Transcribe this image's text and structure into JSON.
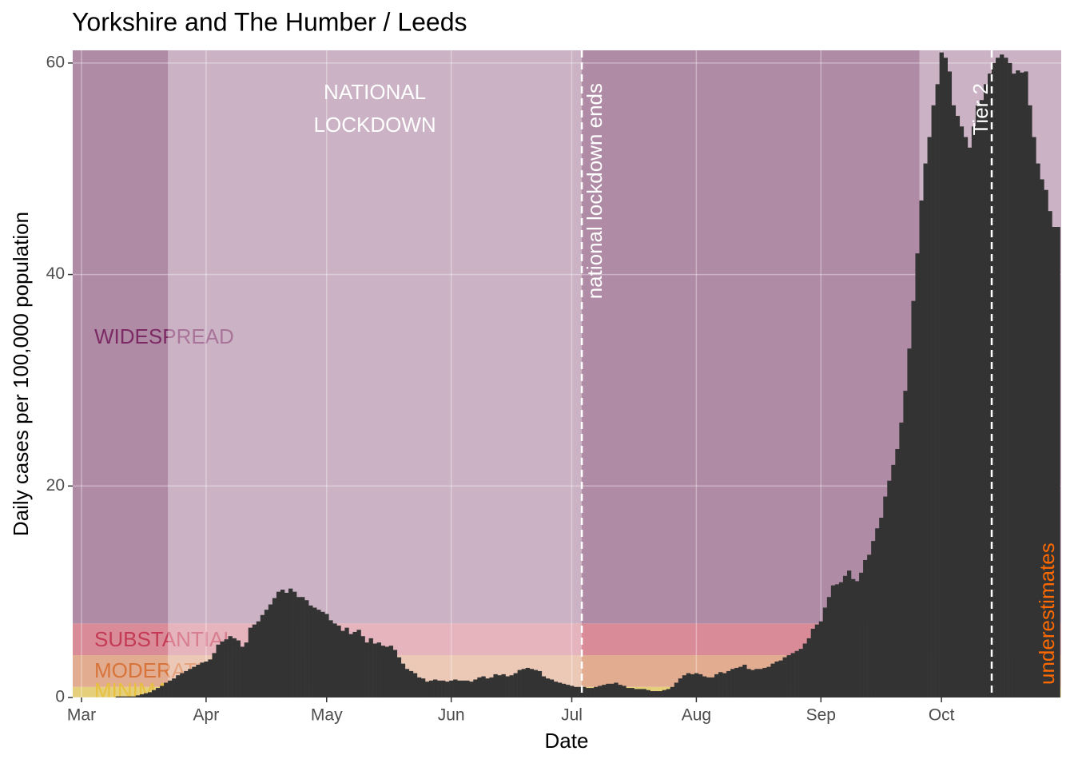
{
  "chart_data": {
    "type": "bar",
    "title": "Yorkshire and The Humber / Leeds",
    "x_label": "Date",
    "y_label": "Daily cases per 100,000 population",
    "color": "#333333",
    "ylim": [
      0,
      61.2
    ],
    "yticks": [
      0,
      20,
      40,
      60
    ],
    "grid": true,
    "categories": [
      "Mar",
      null,
      null,
      null,
      null,
      null,
      null,
      null,
      null,
      null,
      null,
      null,
      null,
      null,
      null,
      null,
      null,
      null,
      null,
      null,
      null,
      null,
      null,
      null,
      null,
      null,
      null,
      null,
      null,
      null,
      null,
      "Apr",
      null,
      null,
      null,
      null,
      null,
      null,
      null,
      null,
      null,
      null,
      null,
      null,
      null,
      null,
      null,
      null,
      null,
      null,
      null,
      null,
      null,
      null,
      null,
      null,
      null,
      null,
      null,
      null,
      null,
      "May",
      null,
      null,
      null,
      null,
      null,
      null,
      null,
      null,
      null,
      null,
      null,
      null,
      null,
      null,
      null,
      null,
      null,
      null,
      null,
      null,
      null,
      null,
      null,
      null,
      null,
      null,
      null,
      null,
      null,
      null,
      "Jun",
      null,
      null,
      null,
      null,
      null,
      null,
      null,
      null,
      null,
      null,
      null,
      null,
      null,
      null,
      null,
      null,
      null,
      null,
      null,
      null,
      null,
      null,
      null,
      null,
      null,
      null,
      null,
      null,
      null,
      "Jul",
      null,
      null,
      null,
      null,
      null,
      null,
      null,
      null,
      null,
      null,
      null,
      null,
      null,
      null,
      null,
      null,
      null,
      null,
      null,
      null,
      null,
      null,
      null,
      null,
      null,
      null,
      null,
      null,
      null,
      null,
      "Aug",
      null,
      null,
      null,
      null,
      null,
      null,
      null,
      null,
      null,
      null,
      null,
      null,
      null,
      null,
      null,
      null,
      null,
      null,
      null,
      null,
      null,
      null,
      null,
      null,
      null,
      null,
      null,
      null,
      null,
      null,
      "Sep",
      null,
      null,
      null,
      null,
      null,
      null,
      null,
      null,
      null,
      null,
      null,
      null,
      null,
      null,
      null,
      null,
      null,
      null,
      null,
      null,
      null,
      null,
      null,
      null,
      null,
      null,
      null,
      null,
      null,
      "Oct",
      null,
      null,
      null,
      null,
      null,
      null,
      null,
      null,
      null,
      null,
      null,
      null,
      null,
      null,
      null,
      null,
      null,
      null,
      null,
      null,
      null,
      null,
      null,
      null,
      null,
      null,
      null,
      null,
      null
    ],
    "values": [
      0,
      0,
      0,
      0,
      0,
      0,
      0,
      0,
      0,
      0.1,
      0.1,
      0.1,
      0.1,
      0.1,
      0.2,
      0.3,
      0.4,
      0.5,
      0.7,
      0.9,
      1.1,
      1.4,
      1.6,
      1.8,
      2.1,
      2.3,
      2.5,
      2.7,
      2.9,
      3.1,
      3.3,
      3.4,
      3.6,
      4.2,
      5,
      5.3,
      5.5,
      5.8,
      5.6,
      5.4,
      4.8,
      5.2,
      6.6,
      6.9,
      7.2,
      7.8,
      8.3,
      8.8,
      9.4,
      10,
      10.2,
      9.9,
      10.3,
      10,
      9.5,
      9.5,
      9.2,
      8.7,
      8.5,
      8.3,
      8.1,
      7.9,
      7.3,
      7.0,
      6.8,
      6.3,
      6.6,
      6.0,
      6.2,
      6.4,
      5.8,
      5.2,
      5.6,
      5.1,
      5.2,
      4.9,
      4.8,
      4.9,
      4.5,
      3.8,
      3.2,
      2.7,
      2.5,
      2.3,
      1.9,
      1.8,
      1.5,
      1.6,
      1.7,
      1.6,
      1.6,
      1.5,
      1.6,
      1.7,
      1.6,
      1.6,
      1.6,
      1.5,
      1.7,
      1.9,
      2.0,
      1.8,
      1.9,
      2.2,
      2.1,
      2.2,
      2.0,
      2.1,
      2.3,
      2.6,
      2.7,
      2.8,
      2.7,
      2.6,
      2.5,
      2.0,
      1.8,
      1.7,
      1.5,
      1.4,
      1.3,
      1.2,
      1.1,
      1.0,
      1.0,
      1.0,
      0.9,
      0.9,
      1.0,
      1.1,
      1.2,
      1.3,
      1.3,
      1.4,
      1.2,
      1.1,
      0.9,
      0.9,
      0.8,
      0.8,
      0.8,
      0.7,
      0.6,
      0.6,
      0.6,
      0.7,
      0.8,
      1.0,
      1.4,
      1.8,
      2.1,
      2.3,
      2.2,
      2.3,
      2.2,
      2.0,
      1.9,
      1.9,
      2.2,
      2.4,
      2.3,
      2.5,
      2.7,
      2.8,
      2.9,
      3.1,
      2.7,
      2.6,
      2.7,
      2.7,
      2.8,
      2.9,
      3.2,
      3.4,
      3.5,
      3.8,
      4.0,
      4.2,
      4.4,
      4.6,
      5.1,
      5.6,
      6.5,
      6.9,
      7.2,
      8.5,
      9.5,
      10.6,
      10.7,
      10.9,
      11.5,
      12.0,
      11.2,
      11.0,
      11.8,
      13.0,
      13.5,
      14.8,
      16,
      17,
      19,
      20.5,
      22,
      23.5,
      26,
      29,
      33,
      37.5,
      42,
      47,
      50.5,
      53,
      56,
      58,
      61,
      60.5,
      59.2,
      56,
      55,
      54,
      53,
      52,
      54,
      56,
      56.5,
      58,
      59,
      60,
      60.5,
      60.8,
      60.5,
      60,
      59,
      59.3,
      59.1,
      59.2,
      56,
      53,
      50.5,
      49,
      48,
      46,
      44.5,
      44.5
    ],
    "bands": [
      {
        "name": "MINIMAL",
        "from": 0,
        "color": "#e6cf7a",
        "label_color": "#e8c040"
      },
      {
        "name": "MODERATE",
        "from": 1,
        "color": "#e2ac90",
        "label_color": "#d8743a"
      },
      {
        "name": "SUBSTANTIAL",
        "from": 4,
        "color": "#d98c98",
        "label_color": "#c43a55"
      },
      {
        "name": "WIDESPREAD",
        "from": 7,
        "color": "#b08ba6",
        "label_color": "#7b2a63"
      }
    ],
    "periods": [
      {
        "start": 22,
        "end": 125,
        "label": [
          "NATIONAL",
          "LOCKDOWN"
        ]
      },
      {
        "start": 209,
        "end": 243
      }
    ],
    "vlines": [
      {
        "at": 125,
        "label": "national lockdown ends"
      },
      {
        "at": 227,
        "label": "Tier 2"
      }
    ],
    "note": "underestimates"
  }
}
